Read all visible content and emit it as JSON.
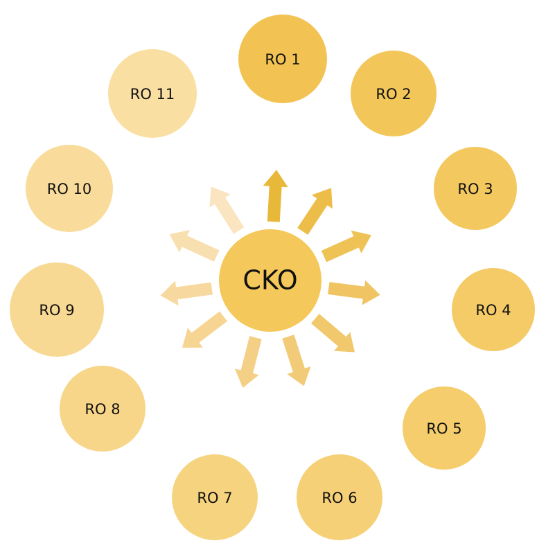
{
  "center": {
    "label": "CKO"
  },
  "nodes": [
    {
      "label": "RO 1"
    },
    {
      "label": "RO 2"
    },
    {
      "label": "RO 3"
    },
    {
      "label": "RO 4"
    },
    {
      "label": "RO 5"
    },
    {
      "label": "RO 6"
    },
    {
      "label": "RO 7"
    },
    {
      "label": "RO 8"
    },
    {
      "label": "RO 9"
    },
    {
      "label": "RO 10"
    },
    {
      "label": "RO 11"
    }
  ]
}
